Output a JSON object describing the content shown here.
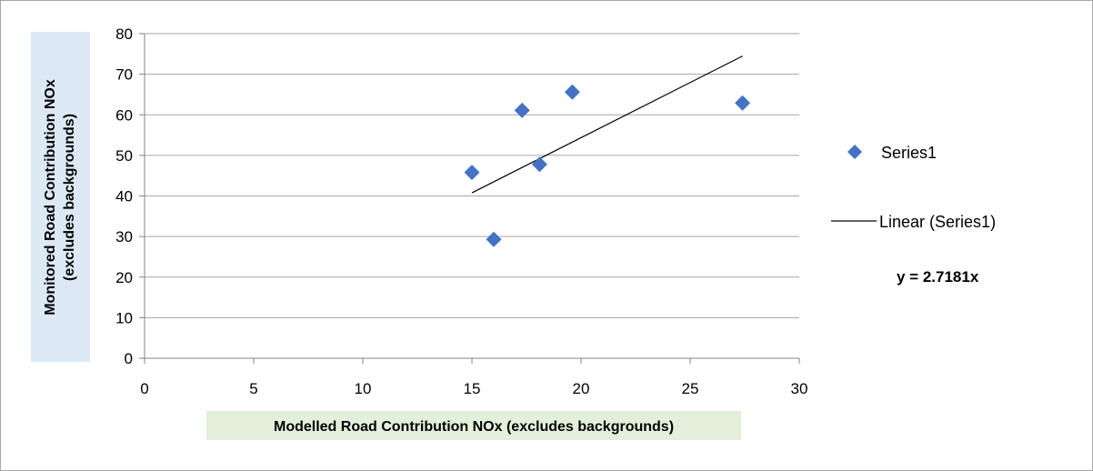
{
  "chart_data": {
    "type": "scatter",
    "title": "",
    "xlabel": "Modelled Road Contribution NOx (excludes backgrounds)",
    "ylabel_lines": [
      "Monitored Road Contribution NOx",
      "(excludes backgrounds)"
    ],
    "xlim": [
      0,
      30
    ],
    "ylim": [
      0,
      80
    ],
    "x_ticks": [
      0,
      5,
      10,
      15,
      20,
      25,
      30
    ],
    "y_ticks": [
      0,
      10,
      20,
      30,
      40,
      50,
      60,
      70,
      80
    ],
    "grid": "horizontal",
    "legend_position": "right",
    "series": [
      {
        "name": "Series1",
        "marker": "diamond",
        "color": "#4472c4",
        "points": [
          {
            "x": 15.0,
            "y": 45.8
          },
          {
            "x": 16.0,
            "y": 29.3
          },
          {
            "x": 17.3,
            "y": 61.1
          },
          {
            "x": 18.1,
            "y": 47.8
          },
          {
            "x": 19.6,
            "y": 65.6
          },
          {
            "x": 27.4,
            "y": 62.9
          }
        ]
      }
    ],
    "trendline": {
      "name": "Linear (Series1)",
      "slope": 2.7181,
      "intercept": 0,
      "x_range": [
        15.0,
        27.4
      ],
      "color": "#000000"
    },
    "equation_label": "y = 2.7181x",
    "colors": {
      "ylabel_bg": "#dce9f5",
      "xlabel_bg": "#e2efda",
      "gridline": "#a6a6a6"
    }
  }
}
